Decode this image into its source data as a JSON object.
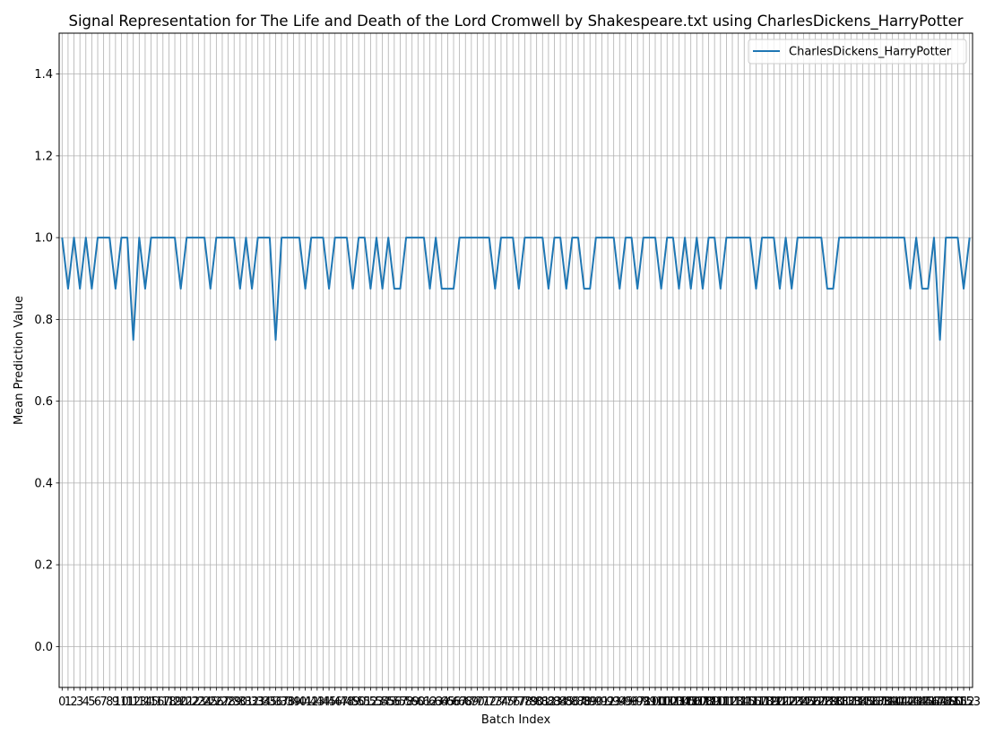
{
  "chart_data": {
    "type": "line",
    "title": "Signal Representation for The Life and Death of the Lord Cromwell by Shakespeare.txt using CharlesDickens_HarryPotter",
    "xlabel": "Batch Index",
    "ylabel": "Mean Prediction Value",
    "xlim": [
      -0.5,
      153.5
    ],
    "ylim": [
      -0.1,
      1.5
    ],
    "yticks": [
      0.0,
      0.2,
      0.4,
      0.6,
      0.8,
      1.0,
      1.2,
      1.4
    ],
    "ytick_labels": [
      "0.0",
      "0.2",
      "0.4",
      "0.6",
      "0.8",
      "1.0",
      "1.2",
      "1.4"
    ],
    "x": [
      0,
      1,
      2,
      3,
      4,
      5,
      6,
      7,
      8,
      9,
      10,
      11,
      12,
      13,
      14,
      15,
      16,
      17,
      18,
      19,
      20,
      21,
      22,
      23,
      24,
      25,
      26,
      27,
      28,
      29,
      30,
      31,
      32,
      33,
      34,
      35,
      36,
      37,
      38,
      39,
      40,
      41,
      42,
      43,
      44,
      45,
      46,
      47,
      48,
      49,
      50,
      51,
      52,
      53,
      54,
      55,
      56,
      57,
      58,
      59,
      60,
      61,
      62,
      63,
      64,
      65,
      66,
      67,
      68,
      69,
      70,
      71,
      72,
      73,
      74,
      75,
      76,
      77,
      78,
      79,
      80,
      81,
      82,
      83,
      84,
      85,
      86,
      87,
      88,
      89,
      90,
      91,
      92,
      93,
      94,
      95,
      96,
      97,
      98,
      99,
      100,
      101,
      102,
      103,
      104,
      105,
      106,
      107,
      108,
      109,
      110,
      111,
      112,
      113,
      114,
      115,
      116,
      117,
      118,
      119,
      120,
      121,
      122,
      123,
      124,
      125,
      126,
      127,
      128,
      129,
      130,
      131,
      132,
      133,
      134,
      135,
      136,
      137,
      138,
      139,
      140,
      141,
      142,
      143,
      144,
      145,
      146,
      147,
      148,
      149,
      150,
      151,
      152,
      153
    ],
    "xtick_labels": [
      "0",
      "1",
      "2",
      "3",
      "4",
      "5",
      "6",
      "7",
      "8",
      "9",
      "10",
      "11",
      "12",
      "13",
      "14",
      "15",
      "16",
      "17",
      "18",
      "19",
      "20",
      "21",
      "22",
      "23",
      "24",
      "25",
      "26",
      "27",
      "28",
      "29",
      "30",
      "31",
      "32",
      "33",
      "34",
      "35",
      "36",
      "37",
      "38",
      "39",
      "40",
      "41",
      "42",
      "43",
      "44",
      "45",
      "46",
      "47",
      "48",
      "49",
      "50",
      "51",
      "52",
      "53",
      "54",
      "55",
      "56",
      "57",
      "58",
      "59",
      "60",
      "61",
      "62",
      "63",
      "64",
      "65",
      "66",
      "67",
      "68",
      "69",
      "70",
      "71",
      "72",
      "73",
      "74",
      "75",
      "76",
      "77",
      "78",
      "79",
      "80",
      "81",
      "82",
      "83",
      "84",
      "85",
      "86",
      "87",
      "88",
      "89",
      "90",
      "91",
      "92",
      "93",
      "94",
      "95",
      "96",
      "97",
      "98",
      "99",
      "100",
      "101",
      "102",
      "103",
      "104",
      "105",
      "106",
      "107",
      "108",
      "109",
      "110",
      "111",
      "112",
      "113",
      "114",
      "115",
      "116",
      "117",
      "118",
      "119",
      "120",
      "121",
      "122",
      "123",
      "124",
      "125",
      "126",
      "127",
      "128",
      "129",
      "130",
      "131",
      "132",
      "133",
      "134",
      "135",
      "136",
      "137",
      "138",
      "139",
      "140",
      "141",
      "142",
      "143",
      "144",
      "145",
      "146",
      "147",
      "148",
      "149",
      "150",
      "151",
      "152",
      "153"
    ],
    "series": [
      {
        "name": "CharlesDickens_HarryPotter",
        "color": "#1f77b4",
        "values": [
          1.0,
          0.875,
          1.0,
          0.875,
          1.0,
          0.875,
          1.0,
          1.0,
          1.0,
          0.875,
          1.0,
          1.0,
          0.75,
          1.0,
          0.875,
          1.0,
          1.0,
          1.0,
          1.0,
          1.0,
          0.875,
          1.0,
          1.0,
          1.0,
          1.0,
          0.875,
          1.0,
          1.0,
          1.0,
          1.0,
          0.875,
          1.0,
          0.875,
          1.0,
          1.0,
          1.0,
          0.75,
          1.0,
          1.0,
          1.0,
          1.0,
          0.875,
          1.0,
          1.0,
          1.0,
          0.875,
          1.0,
          1.0,
          1.0,
          0.875,
          1.0,
          1.0,
          0.875,
          1.0,
          0.875,
          1.0,
          0.875,
          0.875,
          1.0,
          1.0,
          1.0,
          1.0,
          0.875,
          1.0,
          0.875,
          0.875,
          0.875,
          1.0,
          1.0,
          1.0,
          1.0,
          1.0,
          1.0,
          0.875,
          1.0,
          1.0,
          1.0,
          0.875,
          1.0,
          1.0,
          1.0,
          1.0,
          0.875,
          1.0,
          1.0,
          0.875,
          1.0,
          1.0,
          0.875,
          0.875,
          1.0,
          1.0,
          1.0,
          1.0,
          0.875,
          1.0,
          1.0,
          0.875,
          1.0,
          1.0,
          1.0,
          0.875,
          1.0,
          1.0,
          0.875,
          1.0,
          0.875,
          1.0,
          0.875,
          1.0,
          1.0,
          0.875,
          1.0,
          1.0,
          1.0,
          1.0,
          1.0,
          0.875,
          1.0,
          1.0,
          1.0,
          0.875,
          1.0,
          0.875,
          1.0,
          1.0,
          1.0,
          1.0,
          1.0,
          0.875,
          0.875,
          1.0,
          1.0,
          1.0,
          1.0,
          1.0,
          1.0,
          1.0,
          1.0,
          1.0,
          1.0,
          1.0,
          1.0,
          0.875,
          1.0,
          0.875,
          0.875,
          1.0,
          0.75,
          1.0,
          1.0,
          1.0,
          0.875,
          1.0
        ]
      }
    ],
    "grid": true,
    "legend": "upper right"
  }
}
